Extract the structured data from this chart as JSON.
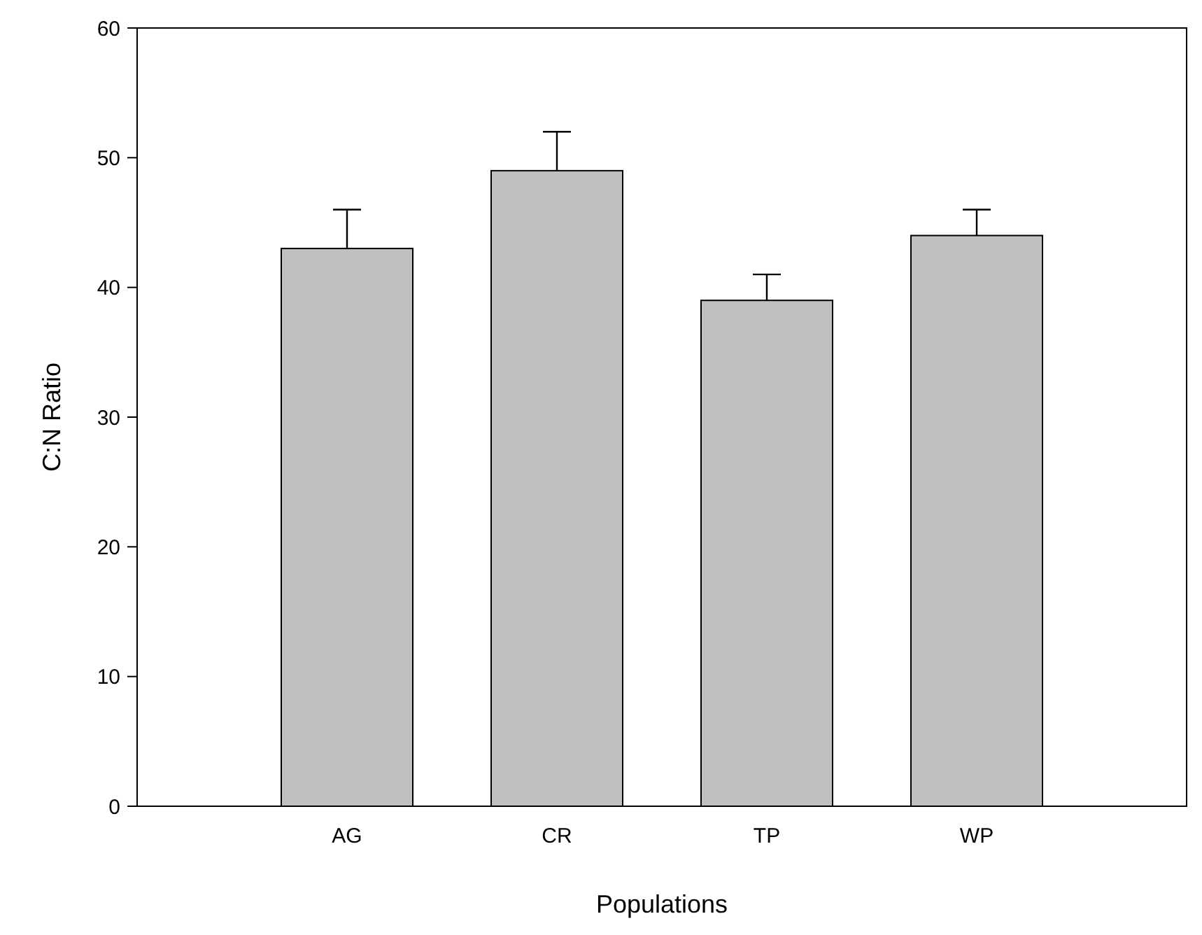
{
  "chart_data": {
    "type": "bar",
    "xlabel": "Populations",
    "ylabel": "C:N Ratio",
    "categories": [
      "AG",
      "CR",
      "TP",
      "WP"
    ],
    "values": [
      43,
      49,
      39,
      44
    ],
    "errors": [
      [
        43,
        46
      ],
      [
        49,
        52
      ],
      [
        39,
        41
      ],
      [
        44,
        46
      ]
    ],
    "color": "#c0c0c0",
    "ylim": [
      0,
      60
    ],
    "yticks": [
      0,
      10,
      20,
      30,
      40,
      50,
      60
    ],
    "grid": false
  }
}
